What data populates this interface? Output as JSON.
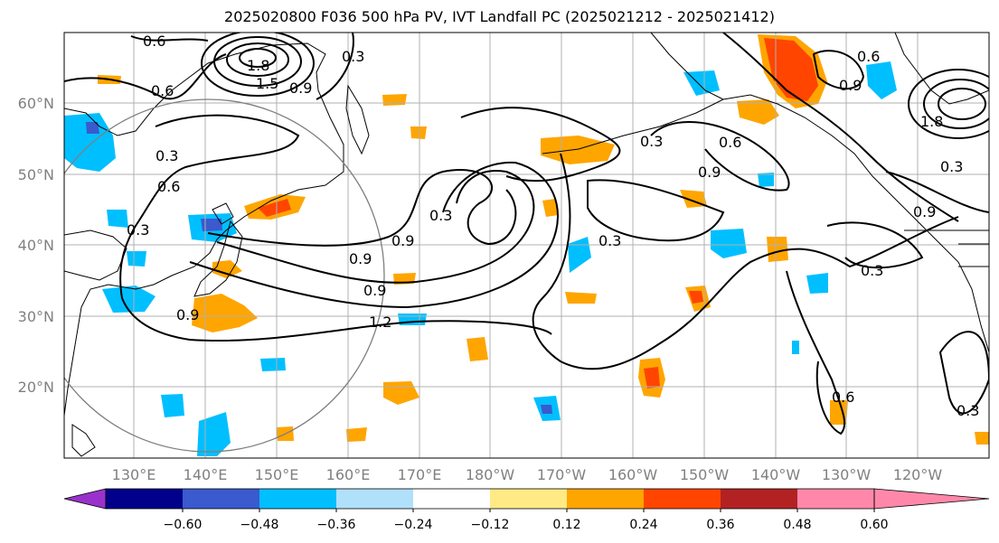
{
  "title": "2025020800 F036 500 hPa PV, IVT Landfall PC (2025021212 - 2025021412)",
  "map": {
    "lat_labels": [
      "60°N",
      "50°N",
      "40°N",
      "30°N",
      "20°N"
    ],
    "lon_labels": [
      "130°E",
      "140°E",
      "150°E",
      "160°E",
      "170°E",
      "180°W",
      "170°W",
      "160°W",
      "150°W",
      "140°W",
      "130°W",
      "120°W"
    ]
  },
  "contour_labels": [
    "0.6",
    "1.8",
    "1.5",
    "0.3",
    "0.6",
    "0.9",
    "0.3",
    "0.6",
    "0.3",
    "0.9",
    "0.3",
    "0.9",
    "0.9",
    "0.9",
    "1.2",
    "0.3",
    "0.6",
    "0.3",
    "0.9",
    "0.3",
    "0.6",
    "0.3",
    "0.9",
    "0.6",
    "0.9",
    "1.8",
    "0.3"
  ],
  "colorbar": {
    "ticks": [
      "−0.60",
      "−0.48",
      "−0.36",
      "−0.24",
      "−0.12",
      "0.12",
      "0.24",
      "0.36",
      "0.48",
      "0.60"
    ],
    "colors": [
      "#9932cc",
      "#00008b",
      "#3a5acd",
      "#00bfff",
      "#b0e0fa",
      "#ffffff",
      "#ffea85",
      "#ffa500",
      "#ff4500",
      "#b22222",
      "#ff88aa"
    ]
  }
}
